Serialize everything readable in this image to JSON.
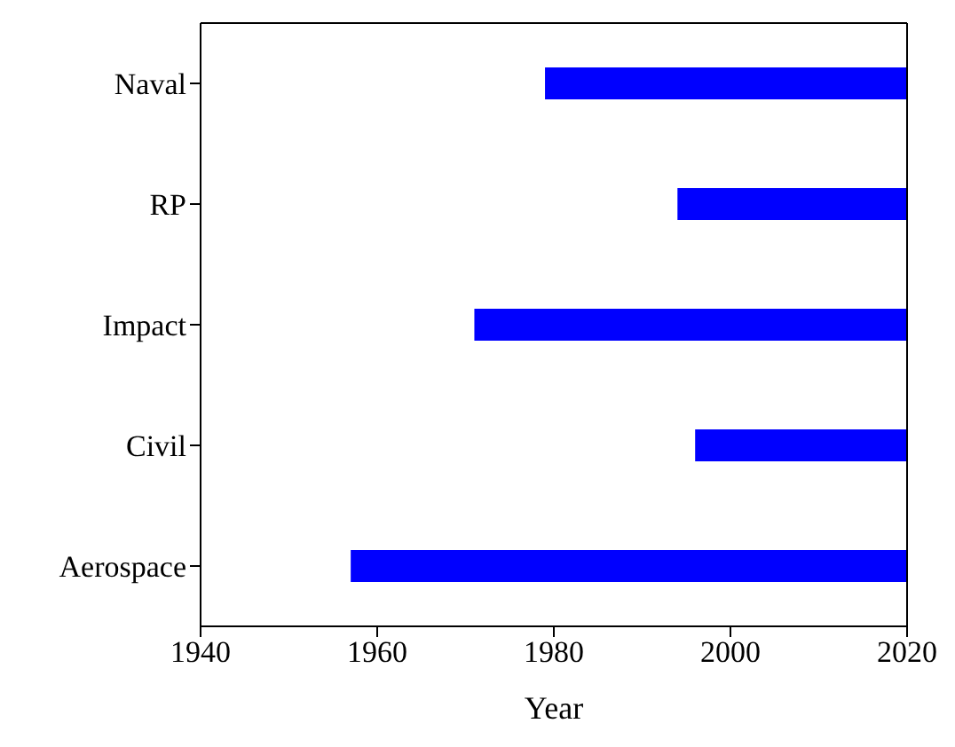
{
  "chart_data": {
    "type": "bar",
    "orientation": "horizontal",
    "xlabel": "Year",
    "categories": [
      "Naval",
      "RP",
      "Impact",
      "Civil",
      "Aerospace"
    ],
    "base": [
      1979,
      1994,
      1971,
      1996,
      1957
    ],
    "values": [
      41,
      26,
      49,
      24,
      63
    ],
    "color": "#0000ff",
    "xlim": [
      1940,
      2020
    ],
    "xticks": [
      1940,
      1960,
      1980,
      2000,
      2020
    ],
    "grid": false,
    "legend": false
  }
}
